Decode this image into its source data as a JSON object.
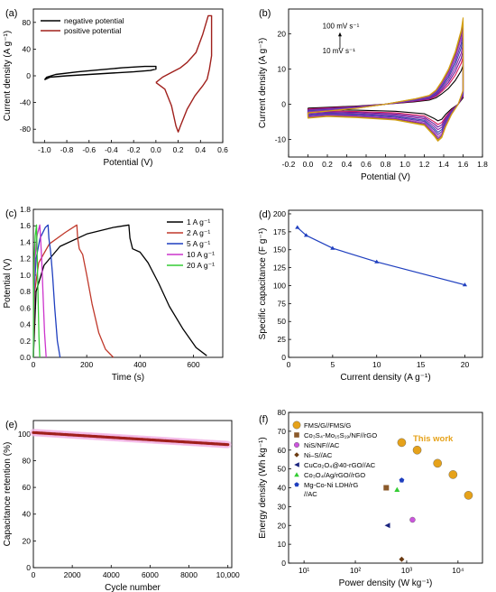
{
  "figure": {
    "colors": {
      "black": "#000000",
      "darkred": "#a0201c",
      "red": "#c0392b",
      "blue": "#1f3fbf",
      "purple": "#8a2be2",
      "magenta": "#cc33cc",
      "green": "#33cc33",
      "pink": "#f3b6e6",
      "gold": "#e6a21a",
      "brown": "#8b5a2b",
      "darkbrown": "#6b3b12"
    }
  },
  "chart_data": [
    {
      "id": "a",
      "panel_label": "(a)",
      "type": "line",
      "xlabel": "Potential (V)",
      "ylabel": "Current density (A g⁻¹)",
      "xlim": [
        -1.1,
        0.6
      ],
      "ylim": [
        -100,
        100
      ],
      "xticks": [
        "-1.0",
        "-0.8",
        "-0.6",
        "-0.4",
        "-0.2",
        "0.0",
        "0.2",
        "0.4",
        "0.6"
      ],
      "xtick_values": [
        -1.0,
        -0.8,
        -0.6,
        -0.4,
        -0.2,
        0.0,
        0.2,
        0.4,
        0.6
      ],
      "yticks": [
        "-80",
        "-40",
        "0",
        "40",
        "80"
      ],
      "ytick_values": [
        -80,
        -40,
        0,
        40,
        80
      ],
      "legend": [
        "negative potential",
        "positive potential"
      ],
      "legend_position": "top-left",
      "series": [
        {
          "name": "negative potential",
          "color": "#000000",
          "x": [
            -1.0,
            -0.95,
            -0.8,
            -0.6,
            -0.4,
            -0.2,
            -0.05,
            0.0,
            0.0,
            -0.1,
            -0.3,
            -0.5,
            -0.7,
            -0.9,
            -0.98,
            -1.0
          ],
          "y": [
            -6,
            -2,
            0,
            2,
            4,
            6,
            8,
            10,
            14,
            14,
            12,
            9,
            6,
            2,
            -2,
            -6
          ]
        },
        {
          "name": "positive potential",
          "color": "#a0201c",
          "x": [
            0.0,
            0.08,
            0.14,
            0.18,
            0.2,
            0.22,
            0.28,
            0.35,
            0.42,
            0.46,
            0.48,
            0.5,
            0.5,
            0.47,
            0.42,
            0.36,
            0.28,
            0.22,
            0.14,
            0.06,
            0.0
          ],
          "y": [
            -10,
            -20,
            -45,
            -75,
            -84,
            -75,
            -50,
            -30,
            -15,
            -5,
            10,
            30,
            90,
            90,
            62,
            35,
            20,
            12,
            5,
            -2,
            -10
          ]
        }
      ]
    },
    {
      "id": "b",
      "panel_label": "(b)",
      "type": "line",
      "xlabel": "Potential (V)",
      "ylabel": "Current density (A g⁻¹)",
      "xlim": [
        -0.2,
        1.8
      ],
      "ylim": [
        -15,
        27
      ],
      "xticks": [
        "-0.2",
        "0.0",
        "0.2",
        "0.4",
        "0.6",
        "0.8",
        "1.0",
        "1.2",
        "1.4",
        "1.6",
        "1.8"
      ],
      "xtick_values": [
        -0.2,
        0.0,
        0.2,
        0.4,
        0.6,
        0.8,
        1.0,
        1.2,
        1.4,
        1.6,
        1.8
      ],
      "yticks": [
        "-10",
        "0",
        "10",
        "20"
      ],
      "ytick_values": [
        -10,
        0,
        10,
        20
      ],
      "annotations": [
        {
          "text": "100 mV s⁻¹",
          "x": 0.15,
          "y": 21.5
        },
        {
          "text": "10 mV s⁻¹",
          "x": 0.15,
          "y": 14.5
        }
      ],
      "series": [
        {
          "name": "10 mV s⁻¹",
          "color": "#000000",
          "scale": 0.45
        },
        {
          "name": "",
          "color": "#d81b60",
          "scale": 0.55
        },
        {
          "name": "",
          "color": "#6a1b9a",
          "scale": 0.62
        },
        {
          "name": "",
          "color": "#8e24aa",
          "scale": 0.69
        },
        {
          "name": "",
          "color": "#3949ab",
          "scale": 0.76
        },
        {
          "name": "",
          "color": "#5e35b1",
          "scale": 0.82
        },
        {
          "name": "",
          "color": "#ab47bc",
          "scale": 0.88
        },
        {
          "name": "",
          "color": "#7b1fa2",
          "scale": 0.93
        },
        {
          "name": "",
          "color": "#c0a000",
          "scale": 0.97
        },
        {
          "name": "100 mV s⁻¹",
          "color": "#d4a017",
          "scale": 1.0
        }
      ],
      "base_shape": {
        "x": [
          0.0,
          0.2,
          0.5,
          0.8,
          1.1,
          1.25,
          1.32,
          1.38,
          1.45,
          1.52,
          1.58,
          1.6,
          1.6,
          1.55,
          1.48,
          1.42,
          1.38,
          1.34,
          1.3,
          1.2,
          0.9,
          0.5,
          0.2,
          0.0,
          0.0
        ],
        "y": [
          -2.5,
          -2.0,
          -1.2,
          0.0,
          1.5,
          2.5,
          4.0,
          6.5,
          10.0,
          15.0,
          21.0,
          24.5,
          4.0,
          0.0,
          -3.0,
          -6.5,
          -9.5,
          -10.5,
          -9.0,
          -6.0,
          -4.5,
          -3.8,
          -3.5,
          -4.0,
          -2.5
        ]
      }
    },
    {
      "id": "c",
      "panel_label": "(c)",
      "type": "line",
      "xlabel": "Time (s)",
      "ylabel": "Potential (V)",
      "xlim": [
        0,
        710
      ],
      "ylim": [
        0,
        1.8
      ],
      "xticks": [
        "0",
        "200",
        "400",
        "600"
      ],
      "xtick_values": [
        0,
        200,
        400,
        600
      ],
      "yticks": [
        "0.0",
        "0.2",
        "0.4",
        "0.6",
        "0.8",
        "1.0",
        "1.2",
        "1.4",
        "1.6",
        "1.8"
      ],
      "ytick_values": [
        0.0,
        0.2,
        0.4,
        0.6,
        0.8,
        1.0,
        1.2,
        1.4,
        1.6,
        1.8
      ],
      "legend": [
        "1 A g⁻¹",
        "2 A g⁻¹",
        "5 A g⁻¹",
        "10 A g⁻¹",
        "20 A g⁻¹"
      ],
      "legend_position": "top-right",
      "series": [
        {
          "name": "1 A g⁻¹",
          "color": "#000000",
          "x": [
            0,
            10,
            40,
            100,
            200,
            300,
            358,
            362,
            372,
            400,
            430,
            470,
            510,
            560,
            610,
            650
          ],
          "y": [
            0.0,
            0.8,
            1.12,
            1.35,
            1.5,
            1.58,
            1.61,
            1.45,
            1.32,
            1.28,
            1.15,
            0.9,
            0.62,
            0.35,
            0.12,
            0.02
          ]
        },
        {
          "name": "2 A g⁻¹",
          "color": "#c0392b",
          "x": [
            0,
            5,
            20,
            60,
            120,
            163,
            166,
            172,
            185,
            200,
            220,
            245,
            270,
            300
          ],
          "y": [
            0.0,
            0.8,
            1.15,
            1.38,
            1.52,
            1.61,
            1.45,
            1.32,
            1.25,
            1.0,
            0.65,
            0.3,
            0.1,
            0.0
          ]
        },
        {
          "name": "5 A g⁻¹",
          "color": "#1f3fbf",
          "x": [
            0,
            3,
            10,
            25,
            45,
            55,
            58,
            65,
            72,
            80,
            90,
            100
          ],
          "y": [
            0.0,
            0.8,
            1.2,
            1.45,
            1.58,
            1.61,
            1.45,
            1.28,
            1.0,
            0.6,
            0.2,
            0.0
          ]
        },
        {
          "name": "10 A g⁻¹",
          "color": "#cc33cc",
          "x": [
            0,
            2,
            6,
            14,
            24,
            27,
            31,
            36,
            42,
            48
          ],
          "y": [
            0.0,
            0.8,
            1.2,
            1.48,
            1.61,
            1.45,
            1.2,
            0.8,
            0.3,
            0.0
          ]
        },
        {
          "name": "20 A g⁻¹",
          "color": "#33cc33",
          "x": [
            0,
            1,
            3,
            7,
            12,
            13,
            15,
            18,
            21,
            24
          ],
          "y": [
            0.0,
            0.8,
            1.2,
            1.48,
            1.61,
            1.45,
            1.15,
            0.7,
            0.25,
            0.0
          ]
        }
      ]
    },
    {
      "id": "d",
      "panel_label": "(d)",
      "type": "line",
      "xlabel": "Current density (A g⁻¹)",
      "ylabel": "Specific capacitance (F g⁻¹)",
      "xlim": [
        0,
        22
      ],
      "ylim": [
        0,
        205
      ],
      "xticks": [
        "0",
        "5",
        "10",
        "15",
        "20"
      ],
      "xtick_values": [
        0,
        5,
        10,
        15,
        20
      ],
      "yticks": [
        "0",
        "25",
        "50",
        "75",
        "100",
        "125",
        "150",
        "175",
        "200"
      ],
      "ytick_values": [
        0,
        25,
        50,
        75,
        100,
        125,
        150,
        175,
        200
      ],
      "series": [
        {
          "name": "",
          "color": "#1f3fbf",
          "x": [
            1,
            2,
            5,
            10,
            20
          ],
          "y": [
            181,
            170,
            152,
            133,
            101
          ]
        }
      ]
    },
    {
      "id": "e",
      "panel_label": "(e)",
      "type": "scatter",
      "xlabel": "Cycle number",
      "ylabel": "Capacitance retention (%)",
      "xlim": [
        0,
        10200
      ],
      "ylim": [
        0,
        110
      ],
      "xticks": [
        "0",
        "2000",
        "4000",
        "6000",
        "8000",
        "10,000"
      ],
      "xtick_values": [
        0,
        2000,
        4000,
        6000,
        8000,
        10000
      ],
      "yticks": [
        "0",
        "20",
        "40",
        "60",
        "80",
        "100"
      ],
      "ytick_values": [
        0,
        20,
        40,
        60,
        80,
        100
      ],
      "series": [
        {
          "name": "",
          "color": "#a0201c",
          "halo": "#f3b6e6",
          "x_start": 0,
          "x_end": 10000,
          "y_start": 101,
          "y_end": 92
        }
      ]
    },
    {
      "id": "f",
      "panel_label": "(f)",
      "type": "scatter",
      "xlabel": "Power density (W kg⁻¹)",
      "ylabel": "Energy density (Wh kg⁻¹)",
      "xscale": "log",
      "xlim": [
        5,
        30000
      ],
      "ylim": [
        0,
        80
      ],
      "xticks": [
        "10¹",
        "10²",
        "10³",
        "10⁴"
      ],
      "xtick_values": [
        10,
        100,
        1000,
        10000
      ],
      "yticks": [
        "0",
        "10",
        "20",
        "30",
        "40",
        "50",
        "60",
        "70",
        "80"
      ],
      "ytick_values": [
        0,
        10,
        20,
        30,
        40,
        50,
        60,
        70,
        80
      ],
      "annotation": {
        "text": "This work",
        "color": "#e6a21a"
      },
      "legend_position": "top-left",
      "series": [
        {
          "name": "FMS/G//FMS/G",
          "marker": "circle",
          "color": "#e6a21a",
          "x": [
            800,
            1600,
            4000,
            8000,
            16000
          ],
          "y": [
            64,
            60,
            53,
            47,
            36
          ]
        },
        {
          "name": "Co₃S₄-Mo₁₅S₁₉/NF//rGO",
          "marker": "square",
          "color": "#8b5a2b",
          "x": [
            400
          ],
          "y": [
            40
          ]
        },
        {
          "name": "NiS/NF//AC",
          "marker": "circle",
          "color": "#cc55dd",
          "x": [
            1300
          ],
          "y": [
            23
          ]
        },
        {
          "name": "Ni–S//AC",
          "marker": "diamond",
          "color": "#6b3b12",
          "x": [
            800
          ],
          "y": [
            2
          ]
        },
        {
          "name": "CuCo₂O₄@40-rGO//AC",
          "marker": "triangle-left",
          "color": "#1a237e",
          "x": [
            420
          ],
          "y": [
            20
          ]
        },
        {
          "name": "Co₃O₄/Ag/rGO//rGO",
          "marker": "triangle-up",
          "color": "#33cc33",
          "x": [
            650
          ],
          "y": [
            39
          ]
        },
        {
          "name": "Mg-Co-Ni LDH/rG //AC",
          "legend_lines": [
            "Mg-Co-Ni LDH/rG",
            "//AC"
          ],
          "marker": "pentagon",
          "color": "#1f3fbf",
          "x": [
            800
          ],
          "y": [
            44
          ]
        }
      ]
    }
  ]
}
